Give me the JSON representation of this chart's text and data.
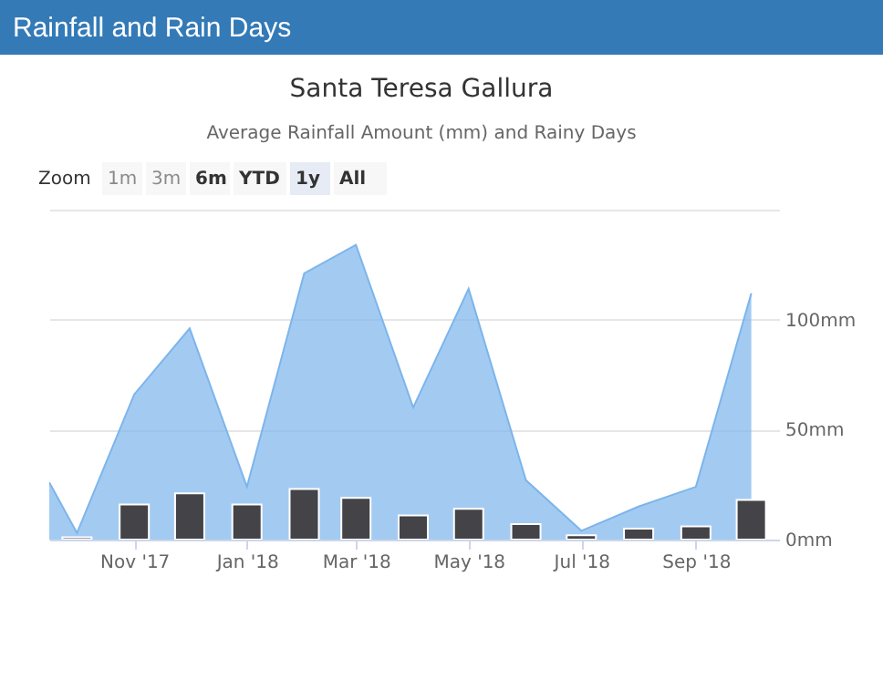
{
  "chart_data": {
    "type": "area",
    "title": "Santa Teresa Gallura",
    "subtitle": "Average Rainfall Amount (mm) and Rainy Days",
    "annotations": [
      "Rainfall and Rain Days",
      "Zoom",
      "1m",
      "3m",
      "6m",
      "YTD",
      "1y",
      "All"
    ],
    "xlim": [
      "2017-09-16",
      "2018-10-16"
    ],
    "xticks": [
      {
        "value": "2017-11-01",
        "label": "Nov '17"
      },
      {
        "value": "2018-01-01",
        "label": "Jan '18"
      },
      {
        "value": "2018-03-01",
        "label": "Mar '18"
      },
      {
        "value": "2018-05-01",
        "label": "May '18"
      },
      {
        "value": "2018-07-01",
        "label": "Jul '18"
      },
      {
        "value": "2018-09-01",
        "label": "Sep '18"
      }
    ],
    "ylim": [
      0,
      150
    ],
    "yticks": [
      {
        "value": 0,
        "label": "0mm"
      },
      {
        "value": 50,
        "label": "50mm"
      },
      {
        "value": 100,
        "label": "100mm"
      },
      {
        "value": 150,
        "label": null
      }
    ],
    "grid": "y",
    "series": [
      {
        "color": "#7cb5ec",
        "x": [
          "2017-09-16",
          "2017-10-01",
          "2017-11-01",
          "2017-12-01",
          "2018-01-01",
          "2018-02-01",
          "2018-03-01",
          "2018-04-01",
          "2018-05-01",
          "2018-06-01",
          "2018-07-01",
          "2018-08-01",
          "2018-09-01",
          "2018-10-01"
        ],
        "values": [
          26,
          3,
          66,
          96,
          24,
          121,
          134,
          60,
          114,
          27,
          4,
          15,
          24,
          112
        ]
      },
      {
        "type": "bar",
        "color": "#434348",
        "x": [
          "2017-10-01",
          "2017-11-01",
          "2017-12-01",
          "2018-01-01",
          "2018-02-01",
          "2018-03-01",
          "2018-04-01",
          "2018-05-01",
          "2018-06-01",
          "2018-07-01",
          "2018-08-01",
          "2018-09-01",
          "2018-10-01"
        ],
        "values": [
          1,
          16,
          21,
          16,
          23,
          19,
          11,
          14,
          7,
          2,
          5,
          6,
          18
        ]
      }
    ]
  }
}
